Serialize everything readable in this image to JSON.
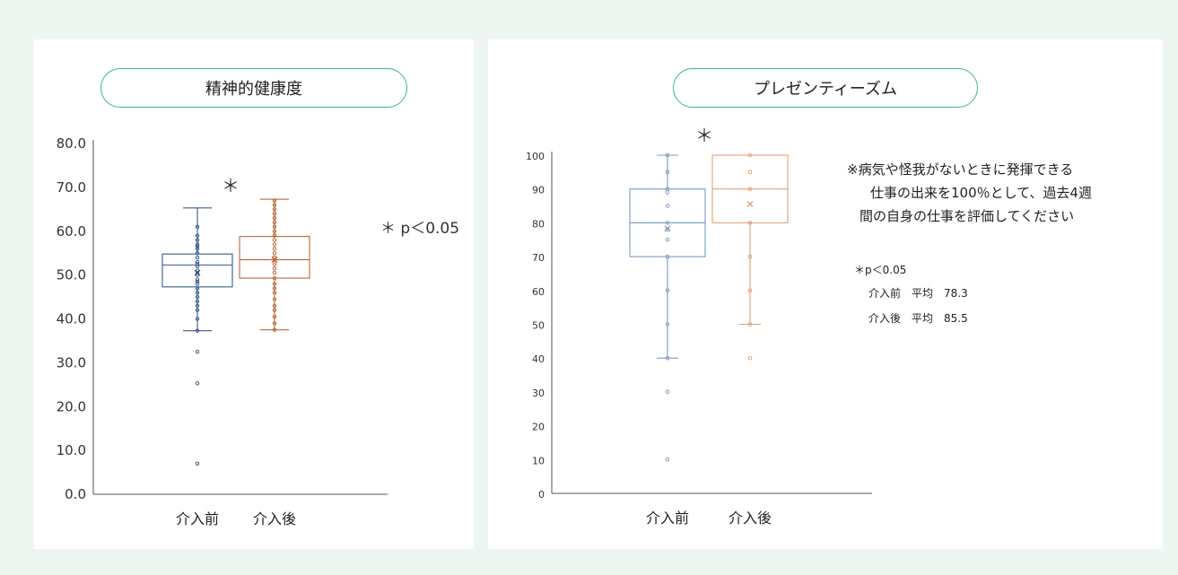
{
  "colors": {
    "background": "#eef6f1",
    "pill_border": "#3db39a",
    "before": "#3a5a8c",
    "after": "#b8693a",
    "before_light": "#7f9bc4",
    "after_light": "#e0a27a"
  },
  "chart_data": [
    {
      "type": "box",
      "title": "精神的健康度",
      "categories": [
        "介入前",
        "介入後"
      ],
      "yticks": [
        "80.0",
        "70.0",
        "60.0",
        "50.0",
        "40.0",
        "30.0",
        "20.0",
        "10.0",
        "0.0"
      ],
      "ylim": [
        0,
        80
      ],
      "significance_mark": "＊",
      "legend_note": "＊ p＜0.05",
      "series": [
        {
          "whisker_low": 37.3,
          "q1": 47.3,
          "median": 52.3,
          "q3": 54.8,
          "whisker_high": 65.3,
          "mean": 50.5,
          "points": [
            7,
            25.3,
            32.5,
            37.3,
            40,
            42,
            43,
            44,
            45,
            46,
            47,
            48,
            48.5,
            49,
            50,
            50.5,
            51,
            52,
            52.5,
            53,
            54,
            55,
            56,
            56.5,
            57,
            58,
            59,
            61
          ]
        },
        {
          "whisker_low": 37.5,
          "q1": 49.3,
          "median": 53.5,
          "q3": 58.8,
          "whisker_high": 67.3,
          "mean": 53.5,
          "points": [
            37.5,
            39,
            40.5,
            42,
            43,
            44.5,
            46,
            47,
            48,
            49.3,
            50.5,
            51.5,
            52.5,
            53.5,
            54,
            55,
            56,
            57,
            58,
            59,
            60,
            61,
            62,
            63,
            64,
            65,
            66,
            67
          ]
        }
      ]
    },
    {
      "type": "box",
      "title": "プレゼンティーズム",
      "categories": [
        "介入前",
        "介入後"
      ],
      "yticks": [
        "100",
        "90",
        "80",
        "70",
        "60",
        "50",
        "40",
        "30",
        "20",
        "10",
        "0"
      ],
      "ylim": [
        0,
        100
      ],
      "significance_mark": "＊",
      "note_lines": [
        "※病気や怪我がないときに発揮できる",
        "仕事の出来を100％として、過去4週",
        "間の自身の仕事を評価してください"
      ],
      "stats": [
        "＊p＜0.05",
        "介入前　平均　78.3",
        "介入後　平均　85.5"
      ],
      "series": [
        {
          "whisker_low": 40,
          "q1": 70,
          "median": 80,
          "q3": 90,
          "whisker_high": 100,
          "mean": 78.3,
          "points": [
            10,
            30,
            40,
            50,
            60,
            70,
            75,
            78,
            80,
            85,
            89,
            90,
            95,
            100
          ]
        },
        {
          "whisker_low": 50,
          "q1": 80,
          "median": 90,
          "q3": 100,
          "whisker_high": 100,
          "mean": 85.5,
          "points": [
            40,
            50,
            60,
            70,
            80,
            90,
            95,
            100
          ]
        }
      ]
    }
  ]
}
